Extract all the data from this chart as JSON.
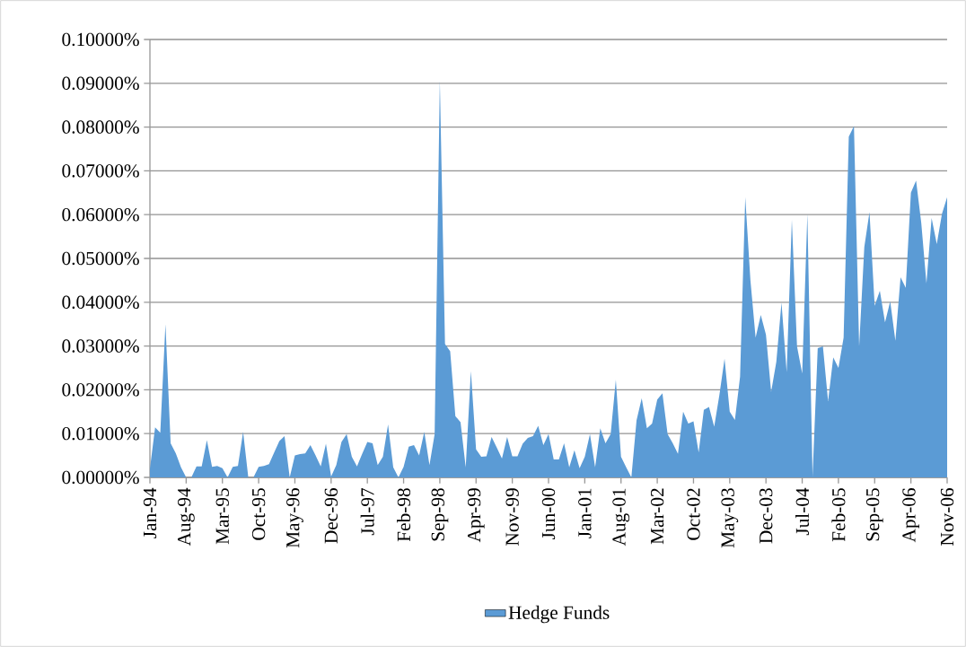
{
  "chart_data": {
    "type": "area",
    "categories": [
      "Jan-94",
      null,
      null,
      null,
      null,
      null,
      null,
      "Aug-94",
      null,
      null,
      null,
      null,
      null,
      null,
      "Mar-95",
      null,
      null,
      null,
      null,
      null,
      null,
      "Oct-95",
      null,
      null,
      null,
      null,
      null,
      null,
      "May-96",
      null,
      null,
      null,
      null,
      null,
      null,
      "Dec-96",
      null,
      null,
      null,
      null,
      null,
      null,
      "Jul-97",
      null,
      null,
      null,
      null,
      null,
      null,
      "Feb-98",
      null,
      null,
      null,
      null,
      null,
      null,
      "Sep-98",
      null,
      null,
      null,
      null,
      null,
      null,
      "Apr-99",
      null,
      null,
      null,
      null,
      null,
      null,
      "Nov-99",
      null,
      null,
      null,
      null,
      null,
      null,
      "Jun-00",
      null,
      null,
      null,
      null,
      null,
      null,
      "Jan-01",
      null,
      null,
      null,
      null,
      null,
      null,
      "Aug-01",
      null,
      null,
      null,
      null,
      null,
      null,
      "Mar-02",
      null,
      null,
      null,
      null,
      null,
      null,
      "Oct-02",
      null,
      null,
      null,
      null,
      null,
      null,
      "May-03",
      null,
      null,
      null,
      null,
      null,
      null,
      "Dec-03",
      null,
      null,
      null,
      null,
      null,
      null,
      "Jul-04",
      null,
      null,
      null,
      null,
      null,
      null,
      "Feb-05",
      null,
      null,
      null,
      null,
      null,
      null,
      "Sep-05",
      null,
      null,
      null,
      null,
      null,
      null,
      "Apr-06",
      null,
      null,
      null,
      null,
      null,
      null,
      "Nov-06"
    ],
    "series": [
      {
        "name": "Hedge Funds",
        "color": "#5b9bd5",
        "values": [
          0.002,
          0.0114,
          0.0102,
          0.035,
          0.0078,
          0.0055,
          0.0023,
          0,
          0,
          0.0025,
          0.0025,
          0.0085,
          0.0024,
          0.0026,
          0.0021,
          0,
          0.0024,
          0.0026,
          0.0104,
          0,
          0,
          0.0024,
          0.0026,
          0.003,
          0.0057,
          0.0083,
          0.0094,
          0,
          0.005,
          0.0053,
          0.0055,
          0.0074,
          0.005,
          0.0025,
          0.0077,
          0.0002,
          0.0028,
          0.0081,
          0.0099,
          0.0047,
          0.0025,
          0.0054,
          0.0081,
          0.0078,
          0.0028,
          0.0047,
          0.0121,
          0.0023,
          0,
          0.0024,
          0.007,
          0.0074,
          0.005,
          0.0104,
          0.0028,
          0.0099,
          0.0906,
          0.0305,
          0.0288,
          0.014,
          0.0126,
          0.0023,
          0.0243,
          0.0064,
          0.0047,
          0.0048,
          0.0092,
          0.0068,
          0.0043,
          0.0092,
          0.0048,
          0.0048,
          0.0077,
          0.009,
          0.0094,
          0.0118,
          0.0074,
          0.0099,
          0.0041,
          0.0041,
          0.0078,
          0.0023,
          0.0062,
          0.0021,
          0.0047,
          0.0099,
          0.0023,
          0.0112,
          0.0078,
          0.0099,
          0.0223,
          0.0047,
          0.0023,
          0,
          0.013,
          0.0181,
          0.0112,
          0.0123,
          0.0178,
          0.0192,
          0.0099,
          0.0078,
          0.0054,
          0.015,
          0.0123,
          0.0128,
          0.0057,
          0.0154,
          0.0161,
          0.0116,
          0.0188,
          0.0271,
          0.015,
          0.0131,
          0.023,
          0.064,
          0.045,
          0.0319,
          0.0371,
          0.0326,
          0.0195,
          0.0264,
          0.0399,
          0.024,
          0.0588,
          0.0299,
          0.0237,
          0.0602,
          0.0002,
          0.0295,
          0.0299,
          0.0174,
          0.0274,
          0.025,
          0.0319,
          0.0778,
          0.0802,
          0.0299,
          0.0526,
          0.0606,
          0.0392,
          0.0426,
          0.0354,
          0.0402,
          0.0312,
          0.0457,
          0.0433,
          0.065,
          0.0678,
          0.0581,
          0.0443,
          0.0592,
          0.0533,
          0.0602,
          0.064
        ]
      }
    ],
    "ylim": [
      0,
      0.1
    ],
    "yticks": [
      {
        "value": 0,
        "label": "0.00000%"
      },
      {
        "value": 0.01,
        "label": "0.01000%"
      },
      {
        "value": 0.02,
        "label": "0.02000%"
      },
      {
        "value": 0.03,
        "label": "0.03000%"
      },
      {
        "value": 0.04,
        "label": "0.04000%"
      },
      {
        "value": 0.05,
        "label": "0.05000%"
      },
      {
        "value": 0.06,
        "label": "0.06000%"
      },
      {
        "value": 0.07,
        "label": "0.07000%"
      },
      {
        "value": 0.08,
        "label": "0.08000%"
      },
      {
        "value": 0.09,
        "label": "0.09000%"
      },
      {
        "value": 0.1,
        "label": "0.10000%"
      }
    ],
    "grid": "y",
    "legend": "bottom"
  }
}
